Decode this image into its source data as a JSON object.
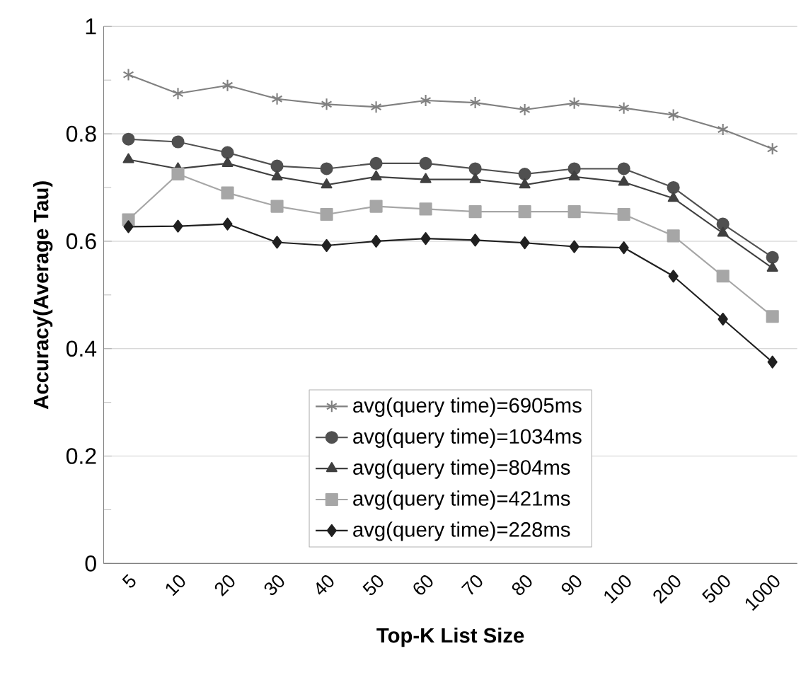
{
  "chart_data": {
    "type": "line",
    "xlabel": "Top-K List Size",
    "ylabel": "Accuracy(Average Tau)",
    "categories": [
      "5",
      "10",
      "20",
      "30",
      "40",
      "50",
      "60",
      "70",
      "80",
      "90",
      "100",
      "200",
      "500",
      "1000"
    ],
    "series": [
      {
        "name": "avg(query time)=6905ms",
        "color": "#808080",
        "marker": "cross",
        "values": [
          0.91,
          0.875,
          0.89,
          0.865,
          0.855,
          0.85,
          0.862,
          0.858,
          0.845,
          0.857,
          0.848,
          0.835,
          0.808,
          0.772
        ]
      },
      {
        "name": "avg(query time)=1034ms",
        "color": "#505050",
        "marker": "circle",
        "values": [
          0.79,
          0.785,
          0.765,
          0.74,
          0.735,
          0.745,
          0.745,
          0.735,
          0.725,
          0.735,
          0.735,
          0.7,
          0.632,
          0.57
        ]
      },
      {
        "name": "avg(query time)=804ms",
        "color": "#404040",
        "marker": "triangle",
        "values": [
          0.752,
          0.735,
          0.745,
          0.72,
          0.705,
          0.72,
          0.715,
          0.715,
          0.705,
          0.72,
          0.71,
          0.68,
          0.615,
          0.55
        ]
      },
      {
        "name": "avg(query time)=421ms",
        "color": "#a6a6a6",
        "marker": "square",
        "values": [
          0.64,
          0.725,
          0.69,
          0.665,
          0.65,
          0.665,
          0.66,
          0.655,
          0.655,
          0.655,
          0.65,
          0.61,
          0.535,
          0.46
        ]
      },
      {
        "name": "avg(query time)=228ms",
        "color": "#202020",
        "marker": "diamond",
        "values": [
          0.627,
          0.628,
          0.632,
          0.598,
          0.592,
          0.6,
          0.605,
          0.602,
          0.597,
          0.59,
          0.588,
          0.535,
          0.455,
          0.375
        ]
      }
    ],
    "ylim": [
      0,
      1
    ],
    "yticks": [
      0,
      0.2,
      0.4,
      0.6,
      0.8,
      1
    ],
    "grid": "y",
    "legend": "bottom",
    "line_style": "solid"
  }
}
